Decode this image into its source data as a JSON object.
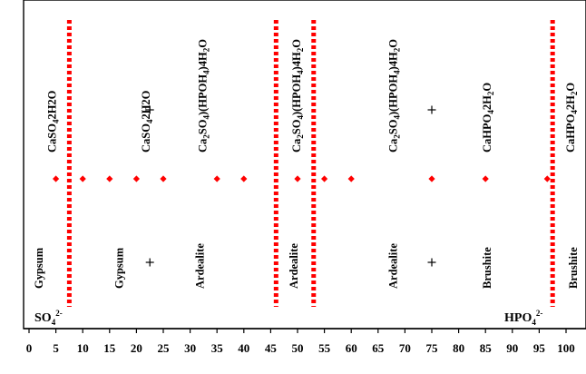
{
  "chart_data": {
    "type": "scatter",
    "xlim": [
      0,
      100
    ],
    "x_ticks": [
      "0",
      "5",
      "10",
      "15",
      "20",
      "25",
      "30",
      "35",
      "40",
      "45",
      "50",
      "55",
      "60",
      "65",
      "70",
      "75",
      "80",
      "85",
      "90",
      "95",
      "100"
    ],
    "grid": false,
    "series": [
      {
        "color": "#ff0000",
        "marker": "diamond",
        "x": [
          5,
          10,
          15,
          20,
          25,
          35,
          40,
          50,
          55,
          60,
          75,
          85,
          96.5
        ]
      }
    ],
    "plus_markers": [
      {
        "x": 22.5,
        "row": "upper"
      },
      {
        "x": 22.5,
        "row": "lower"
      },
      {
        "x": 75,
        "row": "upper"
      },
      {
        "x": 75,
        "row": "lower"
      }
    ],
    "boundaries": [
      7.5,
      46,
      53,
      97.5
    ],
    "boundary_color": "#ff0000",
    "labels": {
      "formula": [
        {
          "x": 5,
          "base": [
            "CaSO",
            "4",
            "2H2O"
          ]
        },
        {
          "x": 22.5,
          "base": [
            "CaSO",
            "4",
            "2H2O"
          ]
        },
        {
          "x": 33,
          "base": [
            "Ca",
            "2",
            "SO",
            "4",
            ")(HPOH",
            "4",
            ")4H",
            "2",
            "O"
          ]
        },
        {
          "x": 50.5,
          "base": [
            "Ca",
            "2",
            "SO",
            "4",
            ")(HPOH",
            "4",
            ")4H",
            "2",
            "O"
          ]
        },
        {
          "x": 68.5,
          "base": [
            "Ca",
            "2",
            "SO",
            "4",
            ")(HPOH",
            "4",
            ")4H",
            "2",
            "O"
          ]
        },
        {
          "x": 86,
          "base": [
            "CaHPO",
            "4",
            "2H",
            "2",
            "O"
          ]
        },
        {
          "x": 101.5,
          "base": [
            "CaHPO",
            "4",
            "2H",
            "2",
            "O"
          ]
        }
      ],
      "mineral": [
        {
          "x": 2.5,
          "text": "Gypsum"
        },
        {
          "x": 17.5,
          "text": "Gypsum"
        },
        {
          "x": 32.5,
          "text": "Ardealite"
        },
        {
          "x": 50,
          "text": "Ardealite"
        },
        {
          "x": 68.5,
          "text": "Ardealite"
        },
        {
          "x": 86,
          "text": "Brushite"
        },
        {
          "x": 102,
          "text": "Brushite"
        }
      ],
      "ion_left": {
        "base": "SO",
        "sub": "4",
        "sup": "2-"
      },
      "ion_right": {
        "base": "HPO",
        "sub": "4",
        "sup": "2-"
      }
    }
  }
}
